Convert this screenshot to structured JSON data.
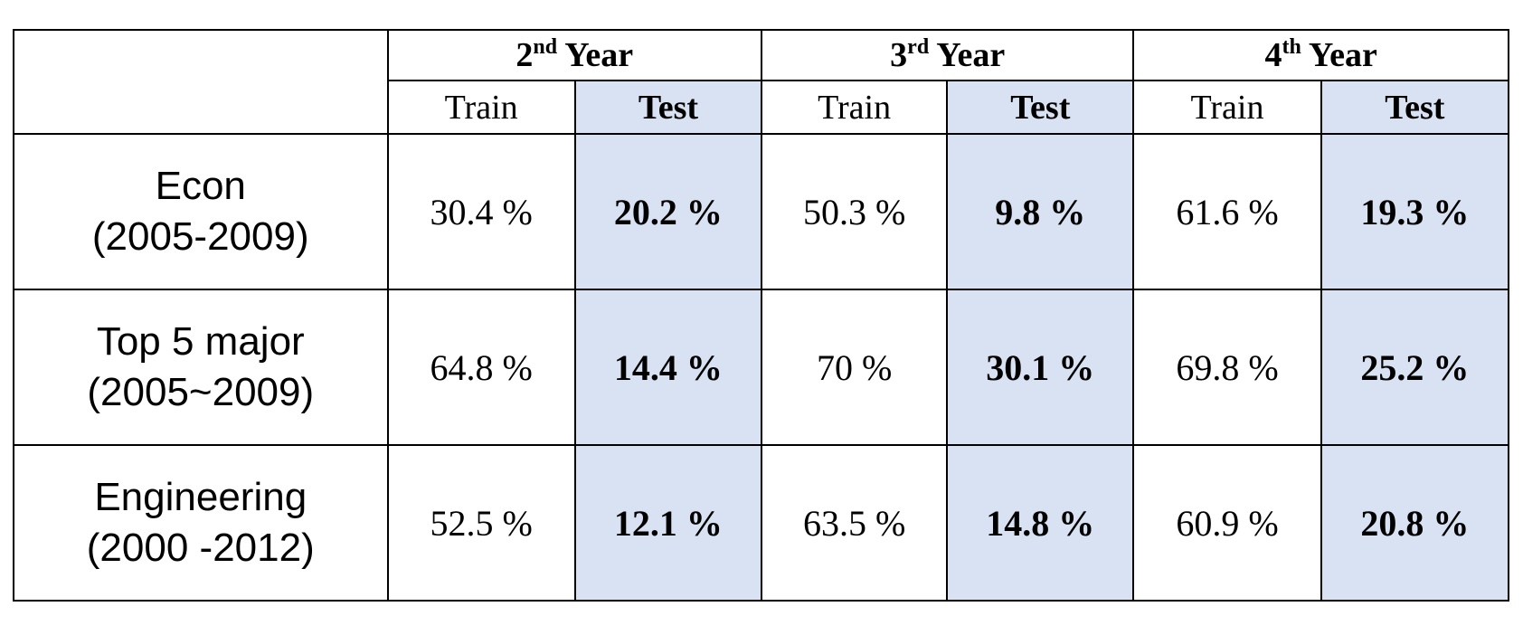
{
  "chart_data": {
    "type": "table",
    "years": [
      {
        "number": "2",
        "suffix": "nd",
        "word": "Year"
      },
      {
        "number": "3",
        "suffix": "rd",
        "word": "Year"
      },
      {
        "number": "4",
        "suffix": "th",
        "word": "Year"
      }
    ],
    "columns": [
      "Train",
      "Test"
    ],
    "rows": [
      {
        "name": "Econ",
        "period": "(2005-2009)",
        "values": [
          "30.4 %",
          "20.2 %",
          "50.3 %",
          "9.8 %",
          "61.6 %",
          "19.3 %"
        ]
      },
      {
        "name": "Top 5 major",
        "period": "(2005~2009)",
        "values": [
          "64.8 %",
          "14.4 %",
          "70 %",
          "30.1 %",
          "69.8 %",
          "25.2 %"
        ]
      },
      {
        "name": "Engineering",
        "period": "(2000 -2012)",
        "values": [
          "52.5 %",
          "12.1 %",
          "63.5 %",
          "14.8 %",
          "60.9 %",
          "20.8 %"
        ]
      }
    ]
  },
  "colors": {
    "test_fill": "#d9e2f3",
    "border": "#000000"
  }
}
